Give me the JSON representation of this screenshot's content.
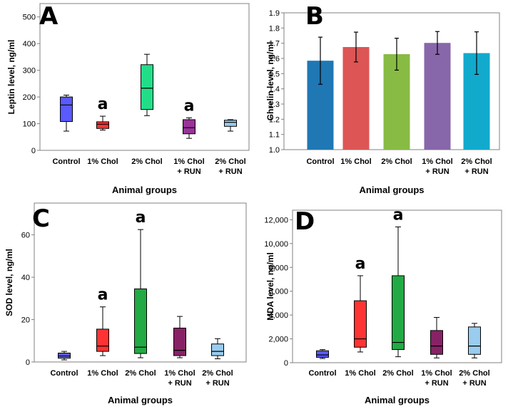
{
  "chart_data": [
    {
      "panel": "A",
      "type": "box",
      "ylabel": "Leptin level, ng/ml",
      "xlabel": "Animal groups",
      "ylim": [
        0,
        550
      ],
      "yticks": [
        "0",
        "100",
        "200",
        "300",
        "400",
        "500"
      ],
      "categories": [
        [
          "Control"
        ],
        [
          "1% Chol"
        ],
        [
          "2% Chol"
        ],
        [
          "1% Chol",
          "+ RUN"
        ],
        [
          "2% Chol",
          "+ RUN"
        ]
      ],
      "boxes": [
        {
          "min": 72,
          "q1": 108,
          "median": 170,
          "q3": 200,
          "max": 207,
          "color": "#5a5aff"
        },
        {
          "min": 76,
          "q1": 82,
          "median": 98,
          "q3": 107,
          "max": 128,
          "color": "#ff3333"
        },
        {
          "min": 130,
          "q1": 153,
          "median": 233,
          "q3": 321,
          "max": 360,
          "color": "#22dd88"
        },
        {
          "min": 45,
          "q1": 62,
          "median": 85,
          "q3": 115,
          "max": 122,
          "color": "#993399"
        },
        {
          "min": 72,
          "q1": 90,
          "median": 105,
          "q3": 113,
          "max": 115,
          "color": "#99ccee"
        }
      ],
      "annotations": [
        {
          "category_index": 1,
          "text": "a"
        },
        {
          "category_index": 3,
          "text": "a"
        }
      ]
    },
    {
      "panel": "B",
      "type": "bar",
      "ylabel": "Ghrelin level, ng/ml",
      "xlabel": "Animal groups",
      "ylim": [
        1.0,
        1.9
      ],
      "yticks": [
        "1.0",
        "1.1",
        "1.2",
        "1.3",
        "1.4",
        "1.5",
        "1.6",
        "1.7",
        "1.8",
        "1.9"
      ],
      "categories": [
        [
          "Control"
        ],
        [
          "1% Chol"
        ],
        [
          "2% Chol"
        ],
        [
          "1% Chol",
          "+ RUN"
        ],
        [
          "2% Chol",
          "+ RUN"
        ]
      ],
      "values": [
        1.585,
        1.675,
        1.628,
        1.702,
        1.635
      ],
      "errors": [
        0.155,
        0.098,
        0.105,
        0.075,
        0.14
      ],
      "colors": [
        "#1f77b4",
        "#dd5555",
        "#88bb44",
        "#8866aa",
        "#11aacc"
      ]
    },
    {
      "panel": "C",
      "type": "box",
      "ylabel": "SOD level, ng/ml",
      "xlabel": "Animal groups",
      "ylim": [
        0,
        75
      ],
      "yticks": [
        "0",
        "20",
        "40",
        "60"
      ],
      "categories": [
        [
          "Control"
        ],
        [
          "1% Chol"
        ],
        [
          "2% Chol"
        ],
        [
          "1% Chol",
          "+ RUN"
        ],
        [
          "2% Chol",
          "+ RUN"
        ]
      ],
      "boxes": [
        {
          "min": 1.0,
          "q1": 1.8,
          "median": 2.8,
          "q3": 4.2,
          "max": 5.0,
          "color": "#5a5aff"
        },
        {
          "min": 3.0,
          "q1": 5.0,
          "median": 7.5,
          "q3": 15.5,
          "max": 26.0,
          "color": "#ff3333"
        },
        {
          "min": 2.0,
          "q1": 4.0,
          "median": 7.0,
          "q3": 34.5,
          "max": 62.5,
          "color": "#22aa44"
        },
        {
          "min": 2.0,
          "q1": 3.0,
          "median": 5.5,
          "q3": 16.0,
          "max": 21.5,
          "color": "#882266"
        },
        {
          "min": 1.5,
          "q1": 3.0,
          "median": 5.0,
          "q3": 8.5,
          "max": 11.0,
          "color": "#99ccee"
        }
      ],
      "annotations": [
        {
          "category_index": 1,
          "text": "a"
        },
        {
          "category_index": 2,
          "text": "a"
        }
      ]
    },
    {
      "panel": "D",
      "type": "box",
      "ylabel": "MDA level, ng/ml",
      "xlabel": "Animal groups",
      "ylim": [
        0,
        12800
      ],
      "yticks": [
        "0",
        "2,000",
        "4,000",
        "6,000",
        "8,000",
        "10,000",
        "12,000"
      ],
      "categories": [
        [
          "Control"
        ],
        [
          "1% Chol"
        ],
        [
          "2% Chol"
        ],
        [
          "1% Chol",
          "+ RUN"
        ],
        [
          "2% Chol",
          "+ RUN"
        ]
      ],
      "boxes": [
        {
          "min": 350,
          "q1": 450,
          "median": 650,
          "q3": 1000,
          "max": 1100,
          "color": "#5a5aff"
        },
        {
          "min": 900,
          "q1": 1300,
          "median": 2000,
          "q3": 5200,
          "max": 7300,
          "color": "#ff3333"
        },
        {
          "min": 500,
          "q1": 1100,
          "median": 1700,
          "q3": 7300,
          "max": 11400,
          "color": "#22aa44"
        },
        {
          "min": 400,
          "q1": 700,
          "median": 1400,
          "q3": 2700,
          "max": 3800,
          "color": "#882266"
        },
        {
          "min": 400,
          "q1": 700,
          "median": 1400,
          "q3": 3000,
          "max": 3300,
          "color": "#99ccee"
        }
      ],
      "annotations": [
        {
          "category_index": 1,
          "text": "a"
        },
        {
          "category_index": 2,
          "text": "a"
        }
      ]
    }
  ]
}
